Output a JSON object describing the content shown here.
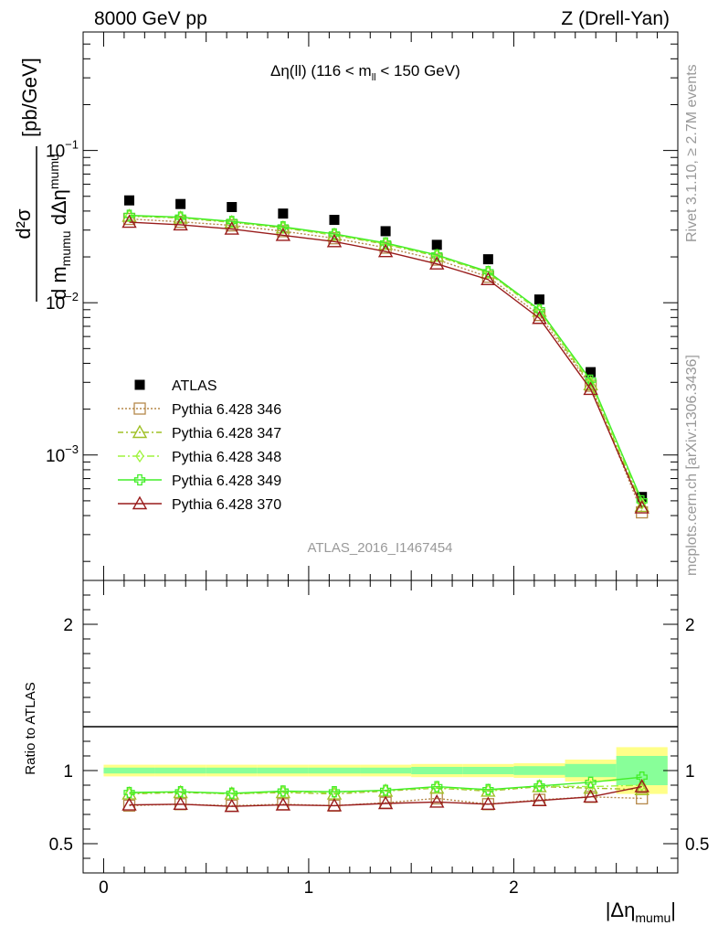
{
  "header": {
    "left": "8000 GeV pp",
    "right": "Z (Drell-Yan)"
  },
  "side_text": {
    "rivet": "Rivet 3.1.10, ≥ 2.7M events",
    "mcplots": "mcplots.cern.ch [arXiv:1306.3436]"
  },
  "watermark": "ATLAS_2016_I1467454",
  "colors": {
    "data": "#000000",
    "p346": "#b5884a",
    "p347": "#9fc026",
    "p348": "#9ff43e",
    "p349": "#42ee28",
    "p370": "#991c1c",
    "band_yellow": "#ffff88",
    "band_green": "#88ff99"
  },
  "chart_data": [
    {
      "type": "scatter",
      "panel": "main",
      "title_parts": {
        "main": "Δη(ll) (116 < m",
        "sub": "ll",
        "tail": " < 150 GeV)"
      },
      "xlabel_parts": {
        "main": "|Δη",
        "sub": "mumu",
        "tail": "|"
      },
      "ylabel_parts": {
        "num": "d²σ",
        "den_d": "d m",
        "den_sub1": "mumu",
        "den_mid": " dΔη",
        "den_sub2": "mumu",
        "units": "[pb/GeV]"
      },
      "yscale": "log",
      "xlim": [
        -0.1,
        2.8
      ],
      "ylim": [
        0.00015,
        0.6
      ],
      "yticks": [
        {
          "base": "10",
          "exp": "−1",
          "value": 0.1
        },
        {
          "base": "10",
          "exp": "−2",
          "value": 0.01
        },
        {
          "base": "10",
          "exp": "−3",
          "value": 0.001
        }
      ],
      "legend_position": "middle-left",
      "x": [
        0.125,
        0.375,
        0.625,
        0.875,
        1.125,
        1.375,
        1.625,
        1.875,
        2.125,
        2.375,
        2.625
      ],
      "series": [
        {
          "name": "ATLAS",
          "key": "data",
          "marker": "square",
          "values": [
            0.047,
            0.0445,
            0.0425,
            0.0385,
            0.035,
            0.0295,
            0.024,
            0.0193,
            0.0105,
            0.0035,
            0.00053
          ]
        },
        {
          "name": "Pythia 6.428 346",
          "key": "p346",
          "marker": "open-square",
          "dash": "2,2",
          "values": [
            0.0355,
            0.034,
            0.0322,
            0.0295,
            0.0265,
            0.023,
            0.0192,
            0.0148,
            0.0083,
            0.00285,
            0.00042
          ]
        },
        {
          "name": "Pythia 6.428 347",
          "key": "p347",
          "marker": "open-triangle",
          "dash": "6,3,2,3",
          "values": [
            0.037,
            0.036,
            0.0337,
            0.031,
            0.0278,
            0.0242,
            0.0202,
            0.0157,
            0.0088,
            0.0029,
            0.00046
          ]
        },
        {
          "name": "Pythia 6.428 348",
          "key": "p348",
          "marker": "open-diamond",
          "dash": "8,3,2,3",
          "values": [
            0.0372,
            0.0362,
            0.034,
            0.0312,
            0.028,
            0.0244,
            0.0204,
            0.0158,
            0.0089,
            0.003,
            0.00048
          ]
        },
        {
          "name": "Pythia 6.428 349",
          "key": "p349",
          "marker": "open-cross",
          "dash": "",
          "values": [
            0.0375,
            0.0365,
            0.0342,
            0.0315,
            0.0283,
            0.0247,
            0.0206,
            0.016,
            0.009,
            0.0031,
            0.0005
          ]
        },
        {
          "name": "Pythia 6.428 370",
          "key": "p370",
          "marker": "open-triangle",
          "dash": "",
          "values": [
            0.0338,
            0.0325,
            0.0305,
            0.0277,
            0.0252,
            0.0217,
            0.018,
            0.0142,
            0.0079,
            0.0027,
            0.00045
          ]
        }
      ]
    },
    {
      "type": "line",
      "panel": "ratio",
      "ylabel": "Ratio to ATLAS",
      "xlim": [
        -0.1,
        2.8
      ],
      "ylim": [
        0.3,
        2.3
      ],
      "yticks": [
        "0.5",
        "1",
        "2"
      ],
      "xticks": [
        "0",
        "1",
        "2"
      ],
      "bin_edges": [
        0,
        0.25,
        0.5,
        0.75,
        1.0,
        1.25,
        1.5,
        1.75,
        2.0,
        2.25,
        2.5,
        2.75
      ],
      "band_yellow_halfwidth": [
        0.04,
        0.04,
        0.04,
        0.04,
        0.04,
        0.04,
        0.045,
        0.045,
        0.05,
        0.075,
        0.16
      ],
      "band_green_halfwidth": [
        0.02,
        0.02,
        0.02,
        0.02,
        0.02,
        0.02,
        0.025,
        0.025,
        0.03,
        0.045,
        0.1
      ],
      "x": [
        0.125,
        0.375,
        0.625,
        0.875,
        1.125,
        1.375,
        1.625,
        1.875,
        2.125,
        2.375,
        2.625
      ],
      "series": [
        {
          "name": "Pythia 6.428 346",
          "key": "p346",
          "marker": "open-square",
          "dash": "2,2",
          "values": [
            0.76,
            0.77,
            0.76,
            0.77,
            0.76,
            0.78,
            0.81,
            0.77,
            0.8,
            0.82,
            0.81
          ]
        },
        {
          "name": "Pythia 6.428 347",
          "key": "p347",
          "marker": "open-triangle",
          "dash": "6,3,2,3",
          "values": [
            0.84,
            0.85,
            0.84,
            0.85,
            0.84,
            0.86,
            0.88,
            0.86,
            0.89,
            0.88,
            0.87
          ]
        },
        {
          "name": "Pythia 6.428 348",
          "key": "p348",
          "marker": "open-diamond",
          "dash": "8,3,2,3",
          "values": [
            0.845,
            0.855,
            0.84,
            0.855,
            0.85,
            0.865,
            0.885,
            0.865,
            0.895,
            0.89,
            0.9
          ]
        },
        {
          "name": "Pythia 6.428 349",
          "key": "p349",
          "marker": "open-cross",
          "dash": "",
          "values": [
            0.85,
            0.855,
            0.845,
            0.86,
            0.855,
            0.865,
            0.89,
            0.87,
            0.895,
            0.92,
            0.955
          ]
        },
        {
          "name": "Pythia 6.428 370",
          "key": "p370",
          "marker": "open-triangle",
          "dash": "",
          "values": [
            0.765,
            0.77,
            0.755,
            0.765,
            0.76,
            0.775,
            0.785,
            0.77,
            0.795,
            0.82,
            0.89
          ]
        }
      ]
    }
  ]
}
